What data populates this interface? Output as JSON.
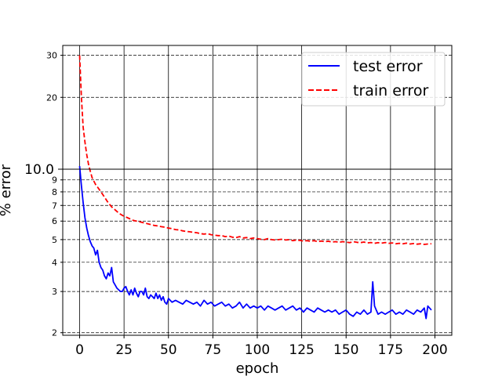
{
  "chart_data": {
    "type": "line",
    "xlabel": "epoch",
    "ylabel": "% error",
    "y_scale": "log",
    "ylim": [
      1.95,
      33
    ],
    "xlim": [
      -9.5,
      209.5
    ],
    "x_ticks": [
      "0",
      "25",
      "50",
      "75",
      "100",
      "125",
      "150",
      "175",
      "200"
    ],
    "x_tick_values": [
      0,
      25,
      50,
      75,
      100,
      125,
      150,
      175,
      200
    ],
    "y_ticks_minor": [
      "2",
      "3",
      "4",
      "5",
      "6",
      "7",
      "8",
      "9"
    ],
    "y_tick_minor_values": [
      2,
      3,
      4,
      5,
      6,
      7,
      8,
      9
    ],
    "y_tick_major": "10.0",
    "y_tick_major_value": 10,
    "y_ticks_upper": [
      "20",
      "30"
    ],
    "y_tick_upper_values": [
      20,
      30
    ],
    "grid": true,
    "legend": "top-right",
    "series": [
      {
        "name": "test error",
        "color": "#0000ff",
        "style": "solid",
        "x": [
          0,
          1,
          2,
          3,
          4,
          5,
          6,
          7,
          8,
          9,
          10,
          11,
          12,
          13,
          14,
          15,
          16,
          17,
          18,
          19,
          20,
          21,
          22,
          23,
          24,
          25,
          26,
          27,
          28,
          29,
          30,
          31,
          32,
          33,
          34,
          35,
          36,
          37,
          38,
          39,
          40,
          41,
          42,
          43,
          44,
          45,
          46,
          47,
          48,
          49,
          50,
          52,
          54,
          56,
          58,
          60,
          62,
          64,
          66,
          68,
          70,
          72,
          74,
          76,
          78,
          80,
          82,
          84,
          86,
          88,
          90,
          92,
          94,
          96,
          98,
          100,
          102,
          104,
          106,
          108,
          110,
          112,
          114,
          116,
          118,
          120,
          122,
          124,
          126,
          128,
          130,
          132,
          134,
          136,
          138,
          140,
          142,
          144,
          146,
          148,
          150,
          152,
          154,
          156,
          158,
          160,
          162,
          164,
          165,
          166,
          168,
          170,
          172,
          174,
          176,
          178,
          180,
          182,
          184,
          186,
          188,
          190,
          192,
          194,
          195,
          196,
          198
        ],
        "values": [
          10.3,
          8.5,
          7.2,
          6.2,
          5.6,
          5.2,
          4.9,
          4.7,
          4.6,
          4.3,
          4.5,
          4.0,
          3.8,
          3.7,
          3.5,
          3.4,
          3.6,
          3.5,
          3.8,
          3.3,
          3.2,
          3.1,
          3.05,
          3.0,
          3.0,
          3.1,
          3.15,
          3.0,
          2.9,
          3.05,
          2.9,
          3.1,
          2.95,
          2.85,
          3.0,
          3.0,
          2.9,
          3.1,
          2.85,
          2.8,
          2.9,
          2.85,
          2.8,
          2.95,
          2.8,
          2.9,
          2.75,
          2.85,
          2.7,
          2.65,
          2.8,
          2.7,
          2.75,
          2.7,
          2.65,
          2.75,
          2.7,
          2.65,
          2.7,
          2.6,
          2.75,
          2.65,
          2.7,
          2.6,
          2.65,
          2.7,
          2.6,
          2.65,
          2.55,
          2.6,
          2.7,
          2.55,
          2.65,
          2.55,
          2.6,
          2.55,
          2.6,
          2.5,
          2.6,
          2.55,
          2.5,
          2.55,
          2.6,
          2.5,
          2.55,
          2.6,
          2.5,
          2.55,
          2.45,
          2.55,
          2.5,
          2.45,
          2.55,
          2.5,
          2.45,
          2.5,
          2.45,
          2.5,
          2.4,
          2.45,
          2.5,
          2.4,
          2.35,
          2.45,
          2.4,
          2.5,
          2.4,
          2.45,
          3.3,
          2.6,
          2.4,
          2.45,
          2.4,
          2.45,
          2.5,
          2.4,
          2.45,
          2.4,
          2.5,
          2.45,
          2.4,
          2.5,
          2.45,
          2.55,
          2.3,
          2.6,
          2.5
        ]
      },
      {
        "name": "train error",
        "color": "#ff0000",
        "style": "dashed",
        "x": [
          0,
          1,
          2,
          3,
          4,
          5,
          6,
          7,
          8,
          9,
          10,
          12,
          14,
          16,
          18,
          20,
          22,
          24,
          26,
          28,
          30,
          32,
          34,
          36,
          38,
          40,
          42,
          44,
          46,
          48,
          50,
          52,
          54,
          56,
          58,
          60,
          62,
          64,
          66,
          68,
          70,
          72,
          74,
          76,
          78,
          80,
          82,
          84,
          86,
          88,
          90,
          92,
          94,
          96,
          98,
          100,
          102,
          104,
          106,
          108,
          110,
          112,
          114,
          116,
          118,
          120,
          122,
          124,
          126,
          128,
          130,
          132,
          134,
          136,
          138,
          140,
          142,
          144,
          146,
          148,
          150,
          152,
          154,
          156,
          158,
          160,
          162,
          164,
          166,
          168,
          170,
          172,
          174,
          176,
          178,
          180,
          182,
          184,
          186,
          188,
          190,
          192,
          194,
          196,
          198
        ],
        "values": [
          30,
          20,
          15,
          13,
          11.5,
          10.5,
          9.8,
          9.2,
          8.9,
          8.6,
          8.4,
          8.0,
          7.6,
          7.2,
          6.9,
          6.7,
          6.5,
          6.35,
          6.25,
          6.15,
          6.05,
          6.0,
          5.95,
          5.9,
          5.85,
          5.8,
          5.75,
          5.72,
          5.68,
          5.65,
          5.6,
          5.57,
          5.52,
          5.5,
          5.45,
          5.42,
          5.4,
          5.37,
          5.35,
          5.3,
          5.28,
          5.3,
          5.25,
          5.22,
          5.2,
          5.2,
          5.15,
          5.18,
          5.12,
          5.1,
          5.15,
          5.08,
          5.1,
          5.05,
          5.08,
          5.05,
          5.02,
          5.0,
          5.05,
          5.0,
          4.98,
          5.0,
          5.02,
          4.98,
          5.0,
          4.95,
          4.98,
          4.96,
          4.93,
          4.95,
          4.92,
          4.95,
          4.9,
          4.93,
          4.9,
          4.92,
          4.88,
          4.9,
          4.87,
          4.9,
          4.88,
          4.85,
          4.9,
          4.87,
          4.85,
          4.88,
          4.84,
          4.86,
          4.82,
          4.85,
          4.83,
          4.86,
          4.82,
          4.84,
          4.8,
          4.82,
          4.8,
          4.83,
          4.79,
          4.81,
          4.78,
          4.8,
          4.77,
          4.79,
          4.8
        ]
      }
    ]
  }
}
